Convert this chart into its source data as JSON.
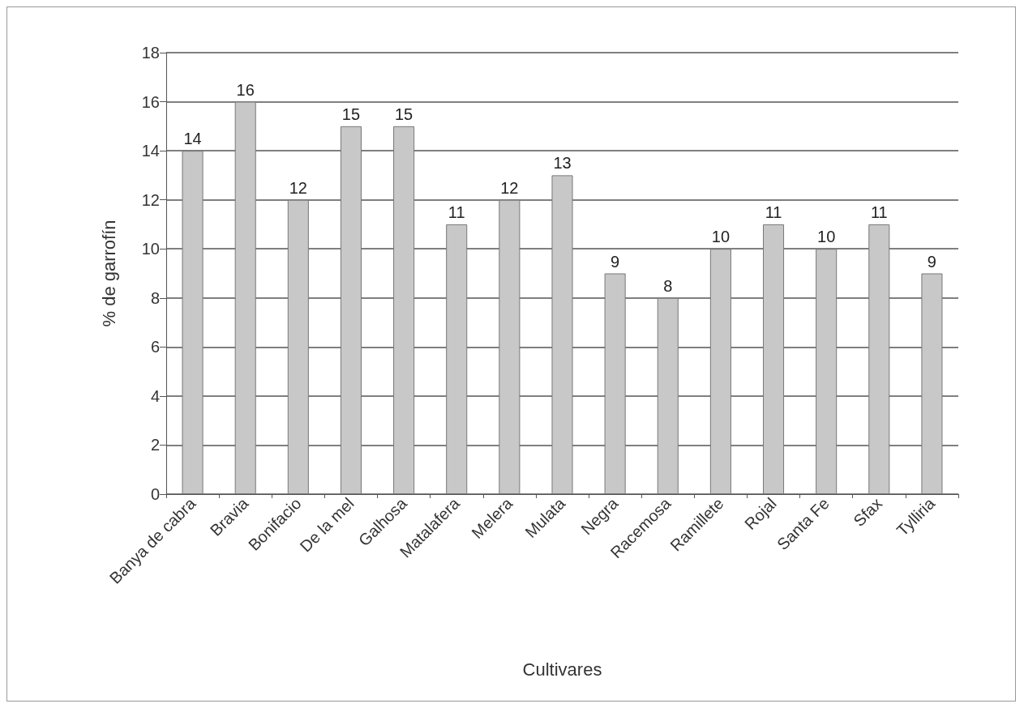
{
  "chart_data": {
    "type": "bar",
    "xlabel": "Cultivares",
    "ylabel": "% de garrofín",
    "categories": [
      "Banya de cabra",
      "Bravia",
      "Bonifacio",
      "De la mel",
      "Galhosa",
      "Matalafera",
      "Melera",
      "Mulata",
      "Negra",
      "Racemosa",
      "Ramillete",
      "Rojal",
      "Santa Fe",
      "Sfax",
      "Tylliria"
    ],
    "values": [
      14,
      16,
      12,
      15,
      15,
      11,
      12,
      13,
      9,
      8,
      10,
      11,
      10,
      11,
      9
    ],
    "color": "#c8c8c8",
    "ylim": [
      0,
      18
    ],
    "yticks": [
      0,
      2,
      4,
      6,
      8,
      10,
      12,
      14,
      16,
      18
    ],
    "grid": "y",
    "data_labels": true
  }
}
